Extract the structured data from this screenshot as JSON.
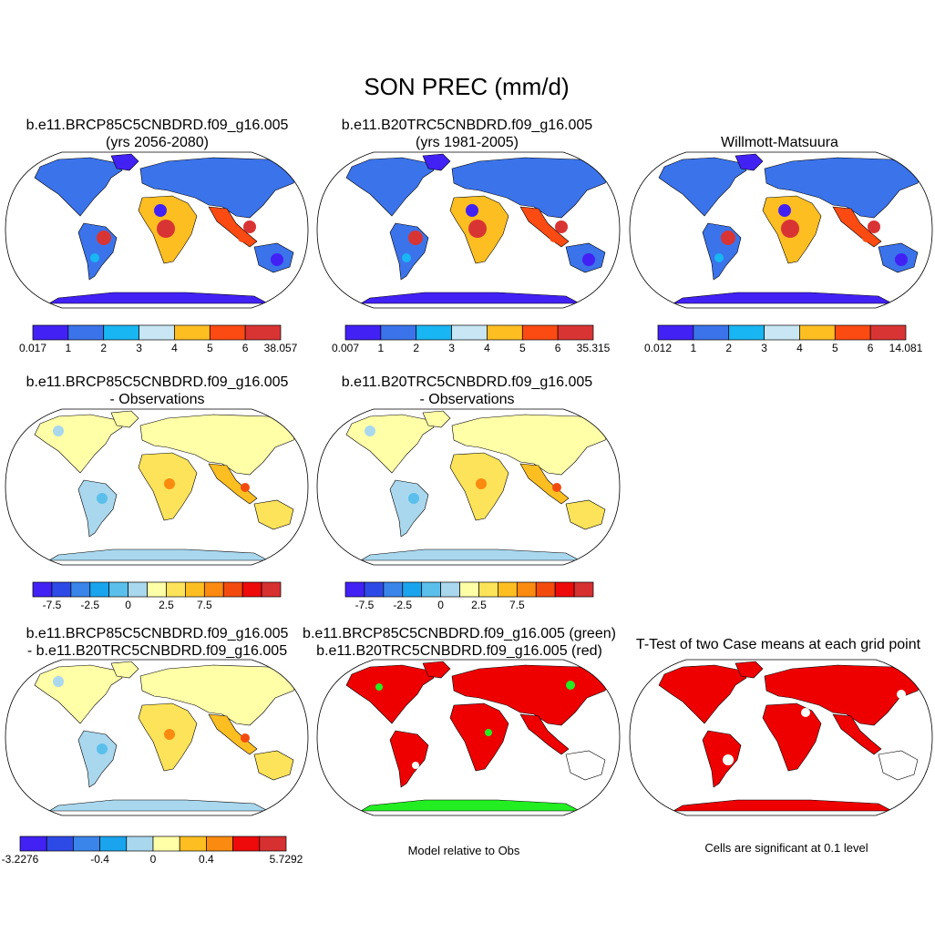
{
  "title": "SON PREC (mm/d)",
  "panels": [
    {
      "title_line1": "b.e11.BRCP85C5CNBDRD.f09_g16.005",
      "title_line2": "(yrs 2056-2080)",
      "kind": "climatology"
    },
    {
      "title_line1": "b.e11.B20TRC5CNBDRD.f09_g16.005",
      "title_line2": "(yrs 1981-2005)",
      "kind": "climatology"
    },
    {
      "title_line1": "",
      "title_line2": "Willmott-Matsuura",
      "kind": "climatology"
    },
    {
      "title_line1": "b.e11.BRCP85C5CNBDRD.f09_g16.005",
      "title_line2": "- Observations",
      "kind": "difference"
    },
    {
      "title_line1": "b.e11.B20TRC5CNBDRD.f09_g16.005",
      "title_line2": "- Observations",
      "kind": "difference"
    },
    {
      "title_line1": "b.e11.BRCP85C5CNBDRD.f09_g16.005",
      "title_line2": "- b.e11.B20TRC5CNBDRD.f09_g16.005",
      "kind": "difference"
    },
    {
      "title_line1": "b.e11.BRCP85C5CNBDRD.f09_g16.005 (green)",
      "title_line2": "b.e11.B20TRC5CNBDRD.f09_g16.005 (red)",
      "kind": "significance_overlay"
    },
    {
      "title_line1": "T-Test of two Case means at each grid point",
      "title_line2": "",
      "kind": "significance"
    }
  ],
  "colorbars": [
    {
      "colors": [
        "#4221f5",
        "#3b73ea",
        "#18b6f2",
        "#c8e6f3",
        "#fdbe22",
        "#fb4a12",
        "#d93434"
      ],
      "labels": [
        "0.017",
        "1",
        "2",
        "3",
        "4",
        "5",
        "6",
        "38.057"
      ]
    },
    {
      "colors": [
        "#4221f5",
        "#3b73ea",
        "#18b6f2",
        "#c8e6f3",
        "#fdbe22",
        "#fb4a12",
        "#d93434"
      ],
      "labels": [
        "0.007",
        "1",
        "2",
        "3",
        "4",
        "5",
        "6",
        "35.315"
      ]
    },
    {
      "colors": [
        "#4221f5",
        "#3b73ea",
        "#18b6f2",
        "#c8e6f3",
        "#fdbe22",
        "#fb4a12",
        "#d93434"
      ],
      "labels": [
        "0.012",
        "1",
        "2",
        "3",
        "4",
        "5",
        "6",
        "14.081"
      ]
    },
    {
      "colors": [
        "#4221f5",
        "#2e4ae6",
        "#3a85ea",
        "#1aa4ee",
        "#5bbfeb",
        "#a9d7ee",
        "#ffffa8",
        "#fde35a",
        "#fdbe22",
        "#fb8a10",
        "#f34b0e",
        "#ee0a0a",
        "#d63030"
      ],
      "labels": [
        "",
        "-7.5",
        "",
        "-2.5",
        "",
        "0",
        "",
        "2.5",
        "",
        "7.5",
        "",
        "",
        ""
      ]
    },
    {
      "colors": [
        "#4221f5",
        "#2e4ae6",
        "#3a85ea",
        "#1aa4ee",
        "#5bbfeb",
        "#a9d7ee",
        "#ffffa8",
        "#fde35a",
        "#fdbe22",
        "#fb8a10",
        "#f34b0e",
        "#ee0a0a",
        "#d63030"
      ],
      "labels": [
        "",
        "-7.5",
        "",
        "-2.5",
        "",
        "0",
        "",
        "2.5",
        "",
        "7.5",
        "",
        "",
        ""
      ]
    },
    {
      "colors": [
        "#4221f5",
        "#2e4ae6",
        "#3a85ea",
        "#1aa4ee",
        "#a9d7ee",
        "#ffffa8",
        "#fdbe22",
        "#fb8a10",
        "#ee0a0a",
        "#d63030"
      ],
      "labels": [
        "-3.2276",
        "",
        "",
        "-0.4",
        "",
        "0",
        "",
        "0.4",
        "",
        "",
        "5.7292"
      ]
    }
  ],
  "notes": {
    "model_relative": "Model relative to Obs",
    "significance": "Cells are significant at 0.1 level"
  },
  "colors": {
    "land_default": "#3b73ea",
    "sig_red": "#ee0000",
    "sig_green": "#22ee22",
    "ocean": "#ffffff",
    "outline": "#000000"
  }
}
